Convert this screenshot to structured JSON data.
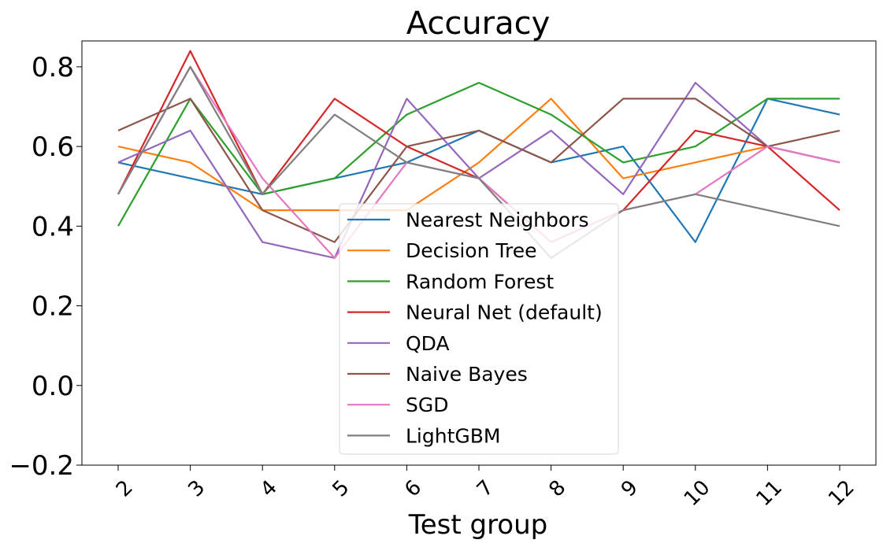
{
  "chart_data": {
    "type": "line",
    "title": "Accuracy",
    "xlabel": "Test group",
    "ylabel": "",
    "categories": [
      "2",
      "3",
      "4",
      "5",
      "6",
      "7",
      "8",
      "9",
      "10",
      "11",
      "12"
    ],
    "ylim": [
      -0.2,
      0.865
    ],
    "yticks": [
      -0.2,
      0.0,
      0.2,
      0.4,
      0.6,
      0.8
    ],
    "ytick_labels": [
      "−0.2",
      "0.0",
      "0.2",
      "0.4",
      "0.6",
      "0.8"
    ],
    "grid": false,
    "legend_position": "center",
    "series": [
      {
        "name": "Nearest Neighbors",
        "color": "#1f77b4",
        "values": [
          0.56,
          0.52,
          0.48,
          0.52,
          0.56,
          0.64,
          0.56,
          0.6,
          0.36,
          0.72,
          0.68
        ]
      },
      {
        "name": "Decision Tree",
        "color": "#ff7f0e",
        "values": [
          0.6,
          0.56,
          0.44,
          0.44,
          0.44,
          0.56,
          0.72,
          0.52,
          0.56,
          0.6,
          0.56
        ]
      },
      {
        "name": "Random Forest",
        "color": "#2ca02c",
        "values": [
          0.4,
          0.72,
          0.48,
          0.52,
          0.68,
          0.76,
          0.68,
          0.56,
          0.6,
          0.72,
          0.72
        ]
      },
      {
        "name": "Neural Net (default)",
        "color": "#d62728",
        "values": [
          0.48,
          0.84,
          0.48,
          0.72,
          0.6,
          0.52,
          0.36,
          0.44,
          0.64,
          0.6,
          0.44
        ]
      },
      {
        "name": "QDA",
        "color": "#9467bd",
        "values": [
          0.56,
          0.64,
          0.36,
          0.32,
          0.72,
          0.52,
          0.64,
          0.48,
          0.76,
          0.6,
          0.56
        ]
      },
      {
        "name": "Naive Bayes",
        "color": "#8c564b",
        "values": [
          0.64,
          0.72,
          0.44,
          0.36,
          0.6,
          0.64,
          0.56,
          0.72,
          0.72,
          0.6,
          0.64
        ]
      },
      {
        "name": "SGD",
        "color": "#e377c2",
        "values": [
          0.48,
          0.8,
          0.52,
          0.32,
          0.56,
          0.52,
          0.36,
          0.44,
          0.48,
          0.6,
          0.56
        ]
      },
      {
        "name": "LightGBM",
        "color": "#7f7f7f",
        "values": [
          0.48,
          0.8,
          0.48,
          0.68,
          0.56,
          0.52,
          0.32,
          0.44,
          0.48,
          0.44,
          0.4
        ]
      }
    ]
  }
}
